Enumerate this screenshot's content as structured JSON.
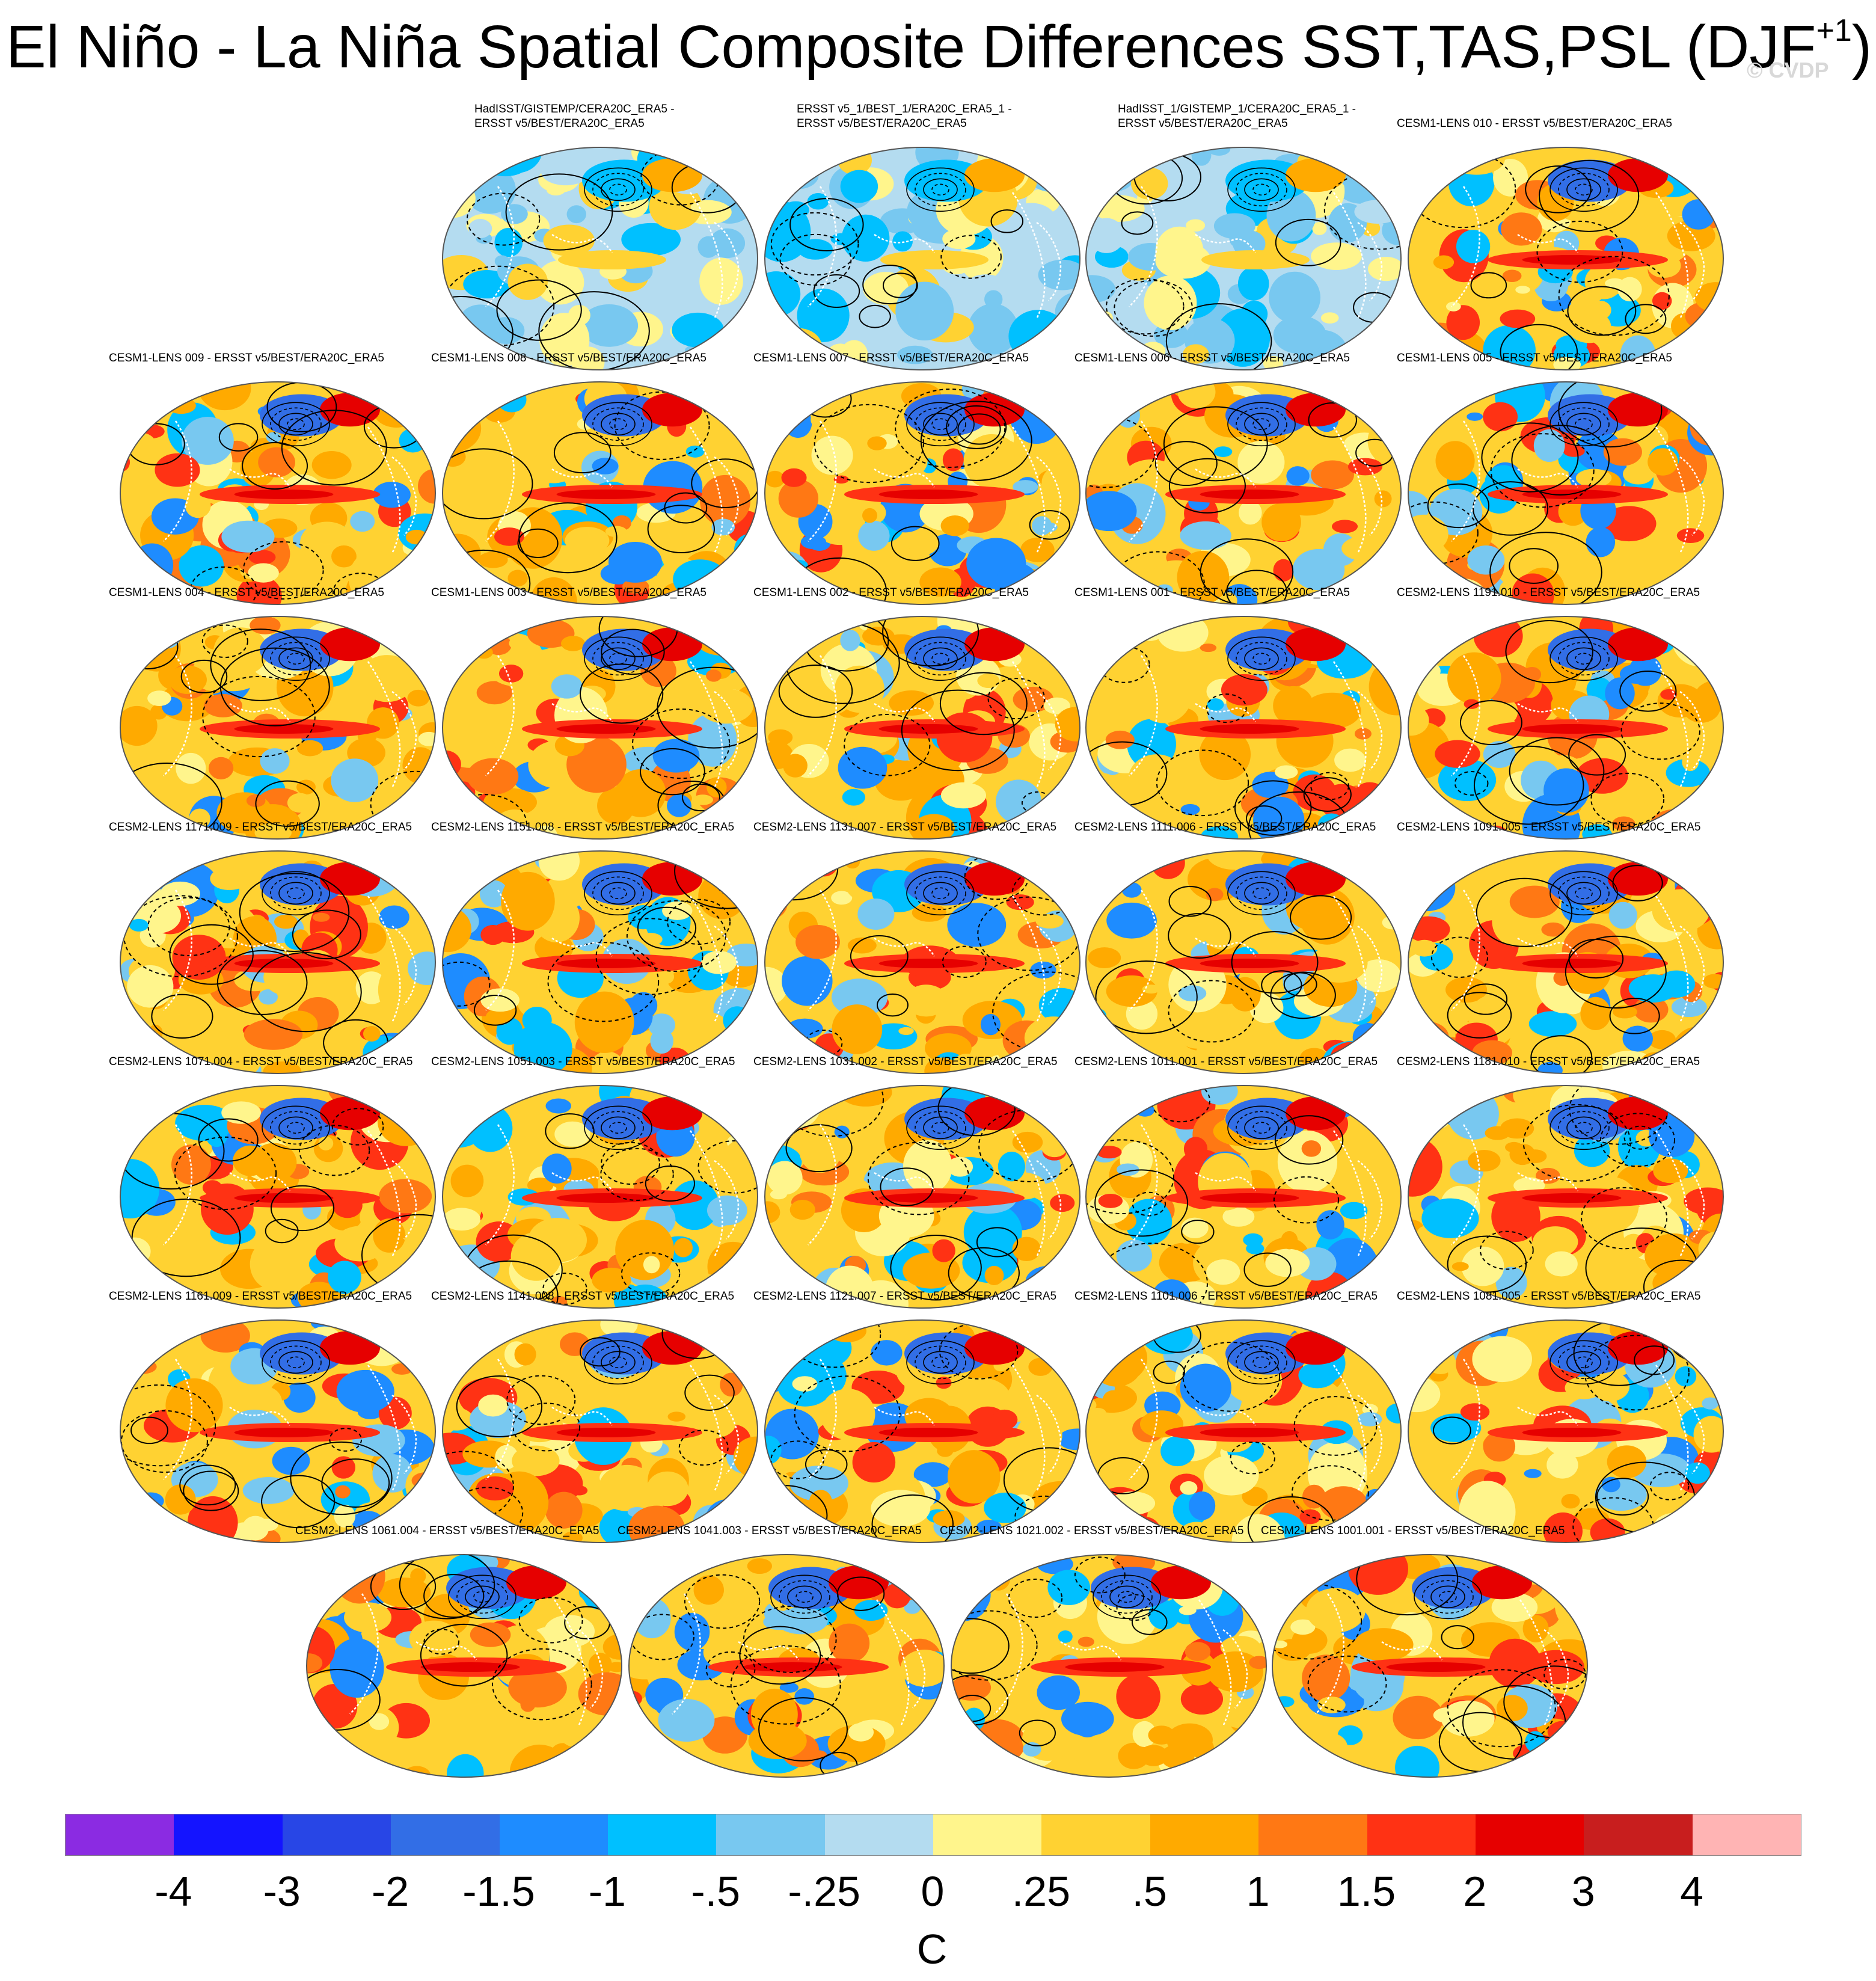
{
  "header": {
    "title": "El Niño - La Niña Spatial Composite Differences SST,TAS,PSL (DJF",
    "title_sup": "+1",
    "title_close": ")",
    "watermark": "© CVDP"
  },
  "chart_data": {
    "type": "heatmap",
    "title": "El Niño - La Niña Spatial Composite Differences SST,TAS,PSL (DJF+1)",
    "projection": "Robinson global maps with PSL contour overlay",
    "units": "C",
    "colorbar": {
      "labels": [
        "-4",
        "-3",
        "-2",
        "-1.5",
        "-1",
        "-.5",
        "-.25",
        "0",
        ".25",
        ".5",
        "1",
        "1.5",
        "2",
        "3",
        "4"
      ],
      "colors": [
        "#8b2be2",
        "#1414ff",
        "#2846e6",
        "#326ee6",
        "#1e8cff",
        "#00c0ff",
        "#78c8f0",
        "#b4dcf0",
        "#fff58c",
        "#ffd232",
        "#ffaa00",
        "#ff7814",
        "#ff3214",
        "#e60000",
        "#c81e1e",
        "#ffb4b4"
      ]
    },
    "panels": [
      {
        "title": "HadISST/GISTEMP/CERA20C_ERA5 -\nERSST v5/BEST/ERA20C_ERA5",
        "amp": 0.35
      },
      {
        "title": "ERSST v5_1/BEST_1/ERA20C_ERA5_1 -\nERSST v5/BEST/ERA20C_ERA5",
        "amp": 0.45
      },
      {
        "title": "HadISST_1/GISTEMP_1/CERA20C_ERA5_1 -\nERSST v5/BEST/ERA20C_ERA5",
        "amp": 0.35
      },
      {
        "title": "CESM1-LENS 010 - ERSST v5/BEST/ERA20C_ERA5",
        "amp": 1.0
      },
      {
        "title": "CESM1-LENS 009 - ERSST v5/BEST/ERA20C_ERA5",
        "amp": 1.0
      },
      {
        "title": "CESM1-LENS 008 - ERSST v5/BEST/ERA20C_ERA5",
        "amp": 1.0
      },
      {
        "title": "CESM1-LENS 007 - ERSST v5/BEST/ERA20C_ERA5",
        "amp": 1.0
      },
      {
        "title": "CESM1-LENS 006 - ERSST v5/BEST/ERA20C_ERA5",
        "amp": 1.0
      },
      {
        "title": "CESM1-LENS 005 - ERSST v5/BEST/ERA20C_ERA5",
        "amp": 1.0
      },
      {
        "title": "CESM1-LENS 004 - ERSST v5/BEST/ERA20C_ERA5",
        "amp": 1.0
      },
      {
        "title": "CESM1-LENS 003 - ERSST v5/BEST/ERA20C_ERA5",
        "amp": 1.0
      },
      {
        "title": "CESM1-LENS 002 - ERSST v5/BEST/ERA20C_ERA5",
        "amp": 1.0
      },
      {
        "title": "CESM1-LENS 001 - ERSST v5/BEST/ERA20C_ERA5",
        "amp": 1.0
      },
      {
        "title": "CESM2-LENS 1191.010 - ERSST v5/BEST/ERA20C_ERA5",
        "amp": 0.9
      },
      {
        "title": "CESM2-LENS 1171.009 - ERSST v5/BEST/ERA20C_ERA5",
        "amp": 0.9
      },
      {
        "title": "CESM2-LENS 1151.008 - ERSST v5/BEST/ERA20C_ERA5",
        "amp": 0.9
      },
      {
        "title": "CESM2-LENS 1131.007 - ERSST v5/BEST/ERA20C_ERA5",
        "amp": 0.9
      },
      {
        "title": "CESM2-LENS 1111.006 - ERSST v5/BEST/ERA20C_ERA5",
        "amp": 0.9
      },
      {
        "title": "CESM2-LENS 1091.005 - ERSST v5/BEST/ERA20C_ERA5",
        "amp": 0.9
      },
      {
        "title": "CESM2-LENS 1071.004 - ERSST v5/BEST/ERA20C_ERA5",
        "amp": 0.9
      },
      {
        "title": "CESM2-LENS 1051.003 - ERSST v5/BEST/ERA20C_ERA5",
        "amp": 0.9
      },
      {
        "title": "CESM2-LENS 1031.002 - ERSST v5/BEST/ERA20C_ERA5",
        "amp": 0.9
      },
      {
        "title": "CESM2-LENS 1011.001 - ERSST v5/BEST/ERA20C_ERA5",
        "amp": 0.9
      },
      {
        "title": "CESM2-LENS 1181.010 - ERSST v5/BEST/ERA20C_ERA5",
        "amp": 0.9
      },
      {
        "title": "CESM2-LENS 1161.009 - ERSST v5/BEST/ERA20C_ERA5",
        "amp": 0.9
      },
      {
        "title": "CESM2-LENS 1141.008 - ERSST v5/BEST/ERA20C_ERA5",
        "amp": 0.9
      },
      {
        "title": "CESM2-LENS 1121.007 - ERSST v5/BEST/ERA20C_ERA5",
        "amp": 0.9
      },
      {
        "title": "CESM2-LENS 1101.006 - ERSST v5/BEST/ERA20C_ERA5",
        "amp": 0.9
      },
      {
        "title": "CESM2-LENS 1081.005 - ERSST v5/BEST/ERA20C_ERA5",
        "amp": 0.9
      },
      {
        "title": "CESM2-LENS 1061.004 - ERSST v5/BEST/ERA20C_ERA5",
        "amp": 0.9
      },
      {
        "title": "CESM2-LENS 1041.003 - ERSST v5/BEST/ERA20C_ERA5",
        "amp": 0.9
      },
      {
        "title": "CESM2-LENS 1021.002 - ERSST v5/BEST/ERA20C_ERA5",
        "amp": 0.9
      },
      {
        "title": "CESM2-LENS 1001.001 - ERSST v5/BEST/ERA20C_ERA5",
        "amp": 0.9
      }
    ]
  }
}
